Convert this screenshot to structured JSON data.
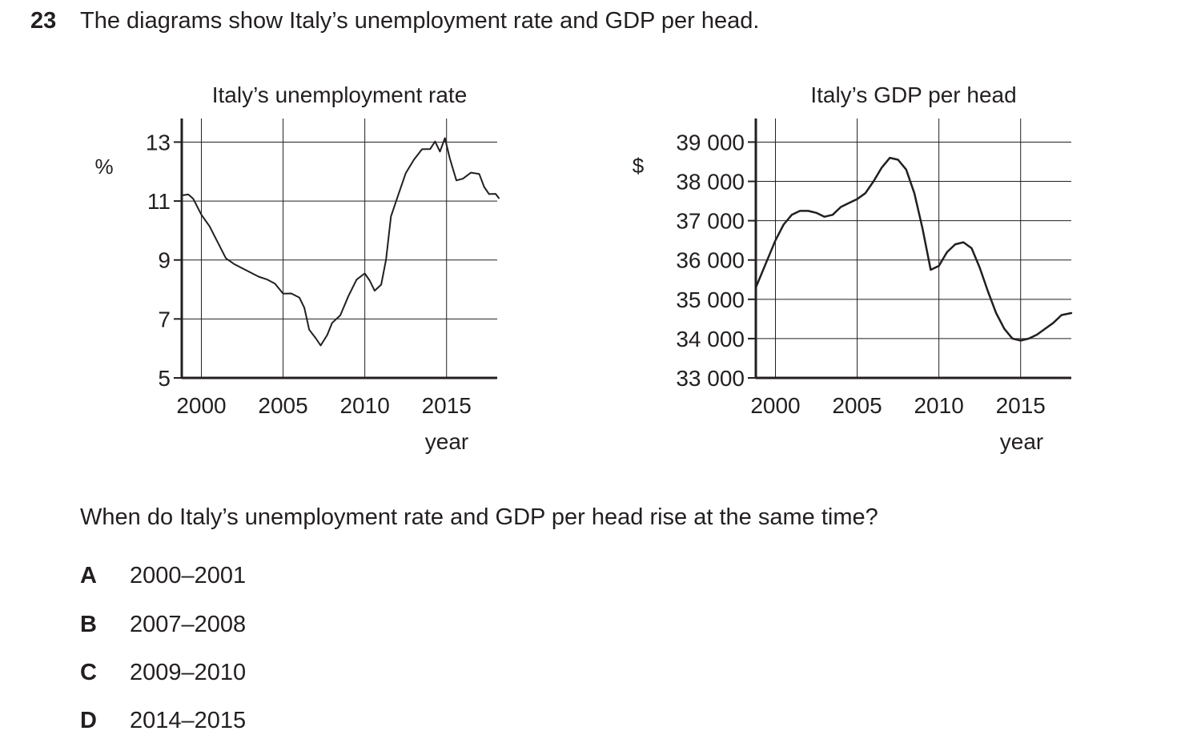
{
  "question": {
    "number": "23",
    "stem": "The diagrams show Italy’s unemployment rate and GDP per head.",
    "prompt": "When do Italy’s unemployment rate and GDP per head rise at the same time?",
    "options": [
      {
        "letter": "A",
        "text": "2000–2001"
      },
      {
        "letter": "B",
        "text": "2007–2008"
      },
      {
        "letter": "C",
        "text": "2009–2010"
      },
      {
        "letter": "D",
        "text": "2014–2015"
      }
    ]
  },
  "chart_data": [
    {
      "type": "line",
      "title": "Italy’s unemployment rate",
      "ylabel": "%",
      "xlabel": "year",
      "xlim": [
        1998.8,
        2018.1
      ],
      "ylim": [
        5,
        13.8
      ],
      "xticks": [
        2000,
        2005,
        2010,
        2015
      ],
      "xtick_labels": [
        "2000",
        "2005",
        "2010",
        "2015"
      ],
      "yticks": [
        5,
        7,
        9,
        11,
        13
      ],
      "ytick_labels": [
        "5",
        "7",
        "9",
        "11",
        "13"
      ],
      "grid": true,
      "series": [
        {
          "name": "Unemployment rate",
          "x": [
            1998.9,
            1999.2,
            1999.5,
            2000.0,
            2000.5,
            2001.0,
            2001.5,
            2002.0,
            2002.5,
            2003.0,
            2003.5,
            2004.0,
            2004.5,
            2005.0,
            2005.5,
            2006.0,
            2006.3,
            2006.6,
            2007.0,
            2007.3,
            2007.7,
            2008.0,
            2008.5,
            2009.0,
            2009.5,
            2010.0,
            2010.3,
            2010.6,
            2011.0,
            2011.3,
            2011.6,
            2012.0,
            2012.5,
            2013.0,
            2013.5,
            2014.0,
            2014.3,
            2014.6,
            2014.9,
            2015.2,
            2015.6,
            2016.0,
            2016.5,
            2017.0,
            2017.3,
            2017.6,
            2018.0,
            2018.2
          ],
          "values": [
            11.2,
            11.2,
            11.1,
            10.6,
            10.1,
            9.6,
            9.1,
            8.8,
            8.7,
            8.6,
            8.5,
            8.3,
            8.2,
            7.9,
            7.8,
            7.7,
            7.4,
            6.7,
            6.3,
            6.1,
            6.5,
            6.8,
            7.1,
            7.8,
            8.4,
            8.5,
            8.3,
            8.0,
            8.1,
            9.0,
            10.5,
            11.2,
            11.9,
            12.4,
            12.8,
            12.7,
            13.0,
            12.7,
            13.2,
            12.4,
            11.7,
            11.8,
            11.9,
            11.9,
            11.5,
            11.3,
            11.2,
            11.1
          ]
        }
      ]
    },
    {
      "type": "line",
      "title": "Italy’s GDP per head",
      "ylabel": "$",
      "xlabel": "year",
      "xlim": [
        1998.8,
        2018.1
      ],
      "ylim": [
        33000,
        39600
      ],
      "xticks": [
        2000,
        2005,
        2010,
        2015
      ],
      "xtick_labels": [
        "2000",
        "2005",
        "2010",
        "2015"
      ],
      "yticks": [
        33000,
        34000,
        35000,
        36000,
        37000,
        38000,
        39000
      ],
      "ytick_labels": [
        "33 000",
        "34 000",
        "35 000",
        "36 000",
        "37 000",
        "38 000",
        "39 000"
      ],
      "grid": true,
      "series": [
        {
          "name": "GDP per head",
          "x": [
            1998.8,
            1999.5,
            2000.0,
            2000.5,
            2001.0,
            2001.5,
            2002.0,
            2002.5,
            2003.0,
            2003.5,
            2004.0,
            2004.5,
            2005.0,
            2005.5,
            2006.0,
            2006.5,
            2007.0,
            2007.5,
            2008.0,
            2008.5,
            2009.0,
            2009.5,
            2010.0,
            2010.5,
            2011.0,
            2011.5,
            2012.0,
            2012.5,
            2013.0,
            2013.5,
            2014.0,
            2014.5,
            2015.0,
            2015.5,
            2016.0,
            2016.5,
            2017.0,
            2017.5,
            2018.1
          ],
          "values": [
            35300,
            36000,
            36500,
            36900,
            37150,
            37250,
            37250,
            37200,
            37100,
            37150,
            37350,
            37450,
            37550,
            37700,
            38000,
            38350,
            38600,
            38550,
            38300,
            37700,
            36800,
            35750,
            35850,
            36200,
            36400,
            36450,
            36300,
            35800,
            35200,
            34650,
            34250,
            34000,
            33950,
            34000,
            34100,
            34250,
            34400,
            34600,
            34650
          ]
        }
      ]
    }
  ]
}
